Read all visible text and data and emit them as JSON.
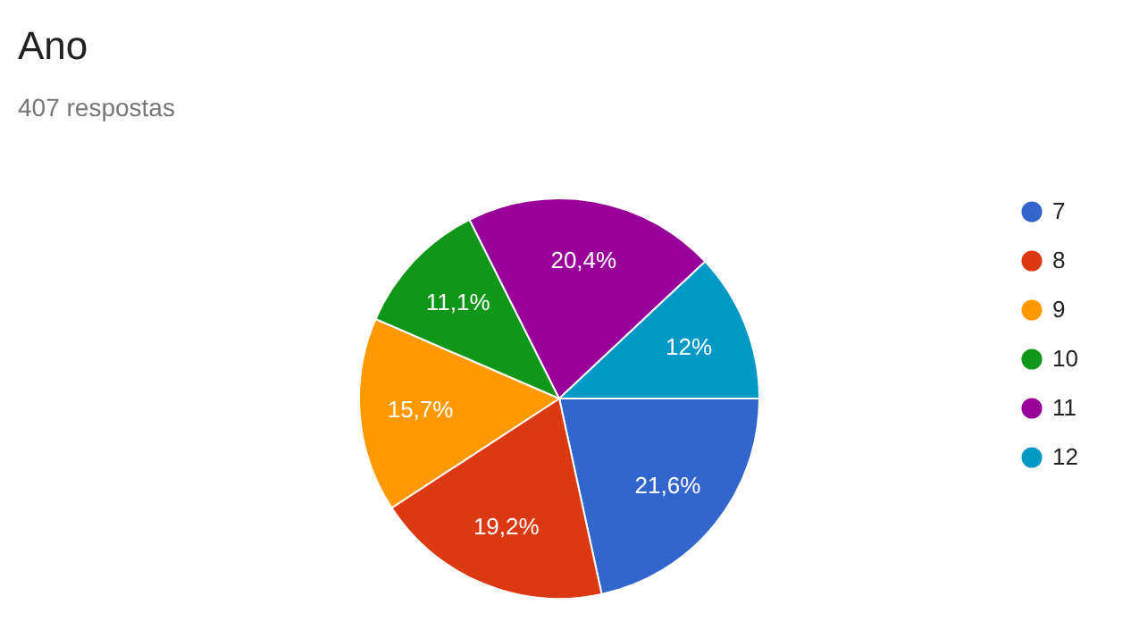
{
  "chart_data": {
    "type": "pie",
    "title": "Ano",
    "subtitle": "407 respostas",
    "categories": [
      "7",
      "8",
      "9",
      "10",
      "11",
      "12"
    ],
    "values": [
      21.6,
      19.2,
      15.7,
      11.1,
      20.4,
      12
    ],
    "colors": [
      "#3366cc",
      "#dc3912",
      "#ff9900",
      "#109618",
      "#990099",
      "#0099c6"
    ],
    "value_labels": [
      "21,6%",
      "19,2%",
      "15,7%",
      "11,1%",
      "20,4%",
      "12%"
    ],
    "legend": "right"
  }
}
